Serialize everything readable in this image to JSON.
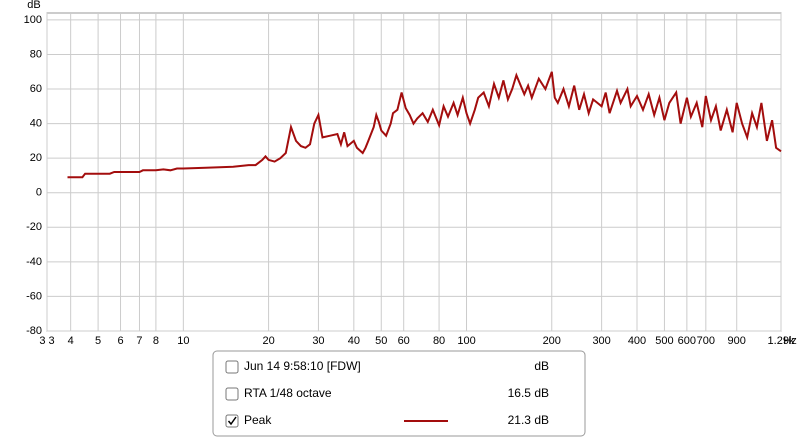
{
  "chart_data": {
    "type": "line",
    "log_x": true,
    "grid": true,
    "y_label": "dB",
    "x_label": "Hz",
    "xlim": [
      3.3,
      1290
    ],
    "ylim": [
      -80,
      104
    ],
    "yticks": [
      -80,
      -60,
      -40,
      -20,
      0,
      20,
      40,
      60,
      80,
      100
    ],
    "xticks": [
      {
        "value": 3.3,
        "label": "3 3"
      },
      4,
      5,
      6,
      7,
      8,
      10,
      20,
      30,
      40,
      50,
      60,
      80,
      100,
      200,
      300,
      400,
      500,
      600,
      700,
      900,
      {
        "value": 1290,
        "label": "1.29k"
      }
    ],
    "series": [
      {
        "name": "Peak",
        "color": "#a30d0d",
        "readout": "21.3 dB",
        "x": [
          3.9,
          4.4,
          4.5,
          5.5,
          5.7,
          7,
          7.2,
          8,
          8.5,
          9,
          9.5,
          10,
          12,
          15,
          17,
          18,
          19,
          19.5,
          20,
          21,
          22,
          23,
          24,
          25,
          26,
          27,
          28,
          29,
          30,
          31,
          33,
          35,
          36,
          37,
          38,
          40,
          41,
          43,
          44,
          45,
          47,
          48,
          49,
          50,
          52,
          54,
          55,
          57,
          59,
          61,
          63,
          65,
          67,
          70,
          73,
          76,
          80,
          83,
          86,
          90,
          93,
          97,
          100,
          103,
          107,
          110,
          115,
          120,
          125,
          130,
          135,
          140,
          145,
          150,
          160,
          165,
          170,
          180,
          190,
          200,
          205,
          210,
          220,
          230,
          240,
          250,
          260,
          270,
          280,
          300,
          310,
          320,
          340,
          350,
          370,
          380,
          400,
          420,
          440,
          460,
          480,
          500,
          520,
          550,
          570,
          600,
          620,
          650,
          680,
          700,
          730,
          760,
          790,
          830,
          870,
          900,
          940,
          980,
          1020,
          1060,
          1100,
          1150,
          1200,
          1240,
          1290
        ],
        "values": [
          9,
          9,
          11,
          11,
          12,
          12,
          13,
          13,
          13.5,
          13,
          14,
          14,
          14.5,
          15,
          16,
          16,
          19,
          21,
          19,
          18,
          20,
          23,
          38,
          30,
          27,
          26,
          28,
          40,
          45,
          32,
          33,
          34,
          28,
          35,
          27,
          30,
          26,
          23,
          26,
          30,
          38,
          45,
          41,
          36,
          33,
          40,
          46,
          48,
          58,
          49,
          45,
          40,
          43,
          46,
          41,
          48,
          39,
          50,
          44,
          52,
          45,
          55,
          46,
          40,
          48,
          55,
          58,
          50,
          63,
          55,
          65,
          54,
          60,
          68,
          57,
          62,
          55,
          66,
          60,
          70,
          55,
          52,
          60,
          50,
          62,
          48,
          57,
          46,
          54,
          50,
          58,
          46,
          59,
          52,
          60,
          50,
          56,
          48,
          57,
          45,
          55,
          42,
          52,
          58,
          40,
          55,
          44,
          52,
          38,
          56,
          42,
          50,
          36,
          48,
          35,
          52,
          40,
          32,
          46,
          38,
          52,
          30,
          42,
          26,
          24
        ]
      }
    ],
    "legend_rows": [
      {
        "label": "Jun 14 9:58:10 [FDW]",
        "readout": "dB",
        "checked": false,
        "color": "#a30d0d"
      },
      {
        "label": "RTA 1/48 octave",
        "readout": "16.5 dB",
        "checked": false,
        "color": "#000000"
      }
    ],
    "peak_checked": true
  }
}
